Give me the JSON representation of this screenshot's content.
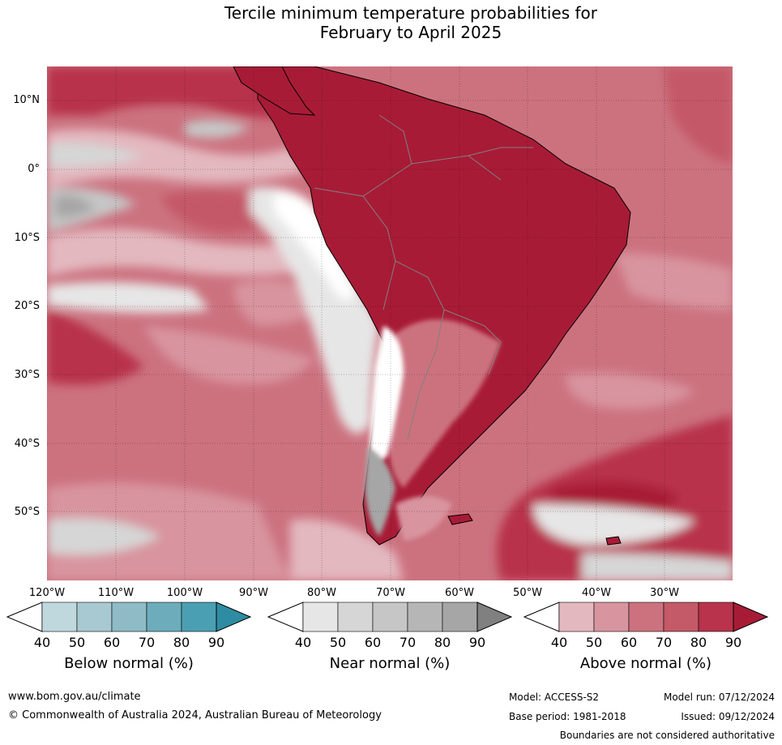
{
  "title_line1": "Tercile minimum temperature probabilities for",
  "title_line2": "February to April 2025",
  "latitudes": [
    "10°N",
    "0°",
    "10°S",
    "20°S",
    "30°S",
    "40°S",
    "50°S"
  ],
  "longitudes": [
    "120°W",
    "110°W",
    "100°W",
    "90°W",
    "80°W",
    "70°W",
    "60°W",
    "50°W",
    "40°W",
    "30°W"
  ],
  "colors": {
    "above": [
      "#ffffff",
      "#e3b8bf",
      "#d8949f",
      "#cc727f",
      "#c45968",
      "#b8334b",
      "#a81b36"
    ],
    "near": [
      "#ffffff",
      "#e6e6e6",
      "#d6d6d6",
      "#c6c6c6",
      "#b6b6b6",
      "#a6a6a6",
      "#808080"
    ],
    "below": [
      "#ffffff",
      "#bfd8de",
      "#a8c9d1",
      "#8fbbc6",
      "#6cacbb",
      "#4b9fb2",
      "#2e8ca2"
    ],
    "land_outline": "#000000",
    "border": "#808080"
  },
  "legends": [
    {
      "label": "Below normal (%)",
      "ticks": [
        "40",
        "50",
        "60",
        "70",
        "80",
        "90"
      ]
    },
    {
      "label": "Near normal (%)",
      "ticks": [
        "40",
        "50",
        "60",
        "70",
        "80",
        "90"
      ]
    },
    {
      "label": "Above normal (%)",
      "ticks": [
        "40",
        "50",
        "60",
        "70",
        "80",
        "90"
      ]
    }
  ],
  "footer": {
    "website": "www.bom.gov.au/climate",
    "copyright": "© Commonwealth of Australia 2024, Australian Bureau of Meteorology",
    "model": "Model: ACCESS-S2",
    "model_run": "Model run: 07/12/2024",
    "base_period": "Base period: 1981-2018",
    "issued": "Issued: 09/12/2024",
    "disclaimer": "Boundaries are not considered authoritative"
  }
}
